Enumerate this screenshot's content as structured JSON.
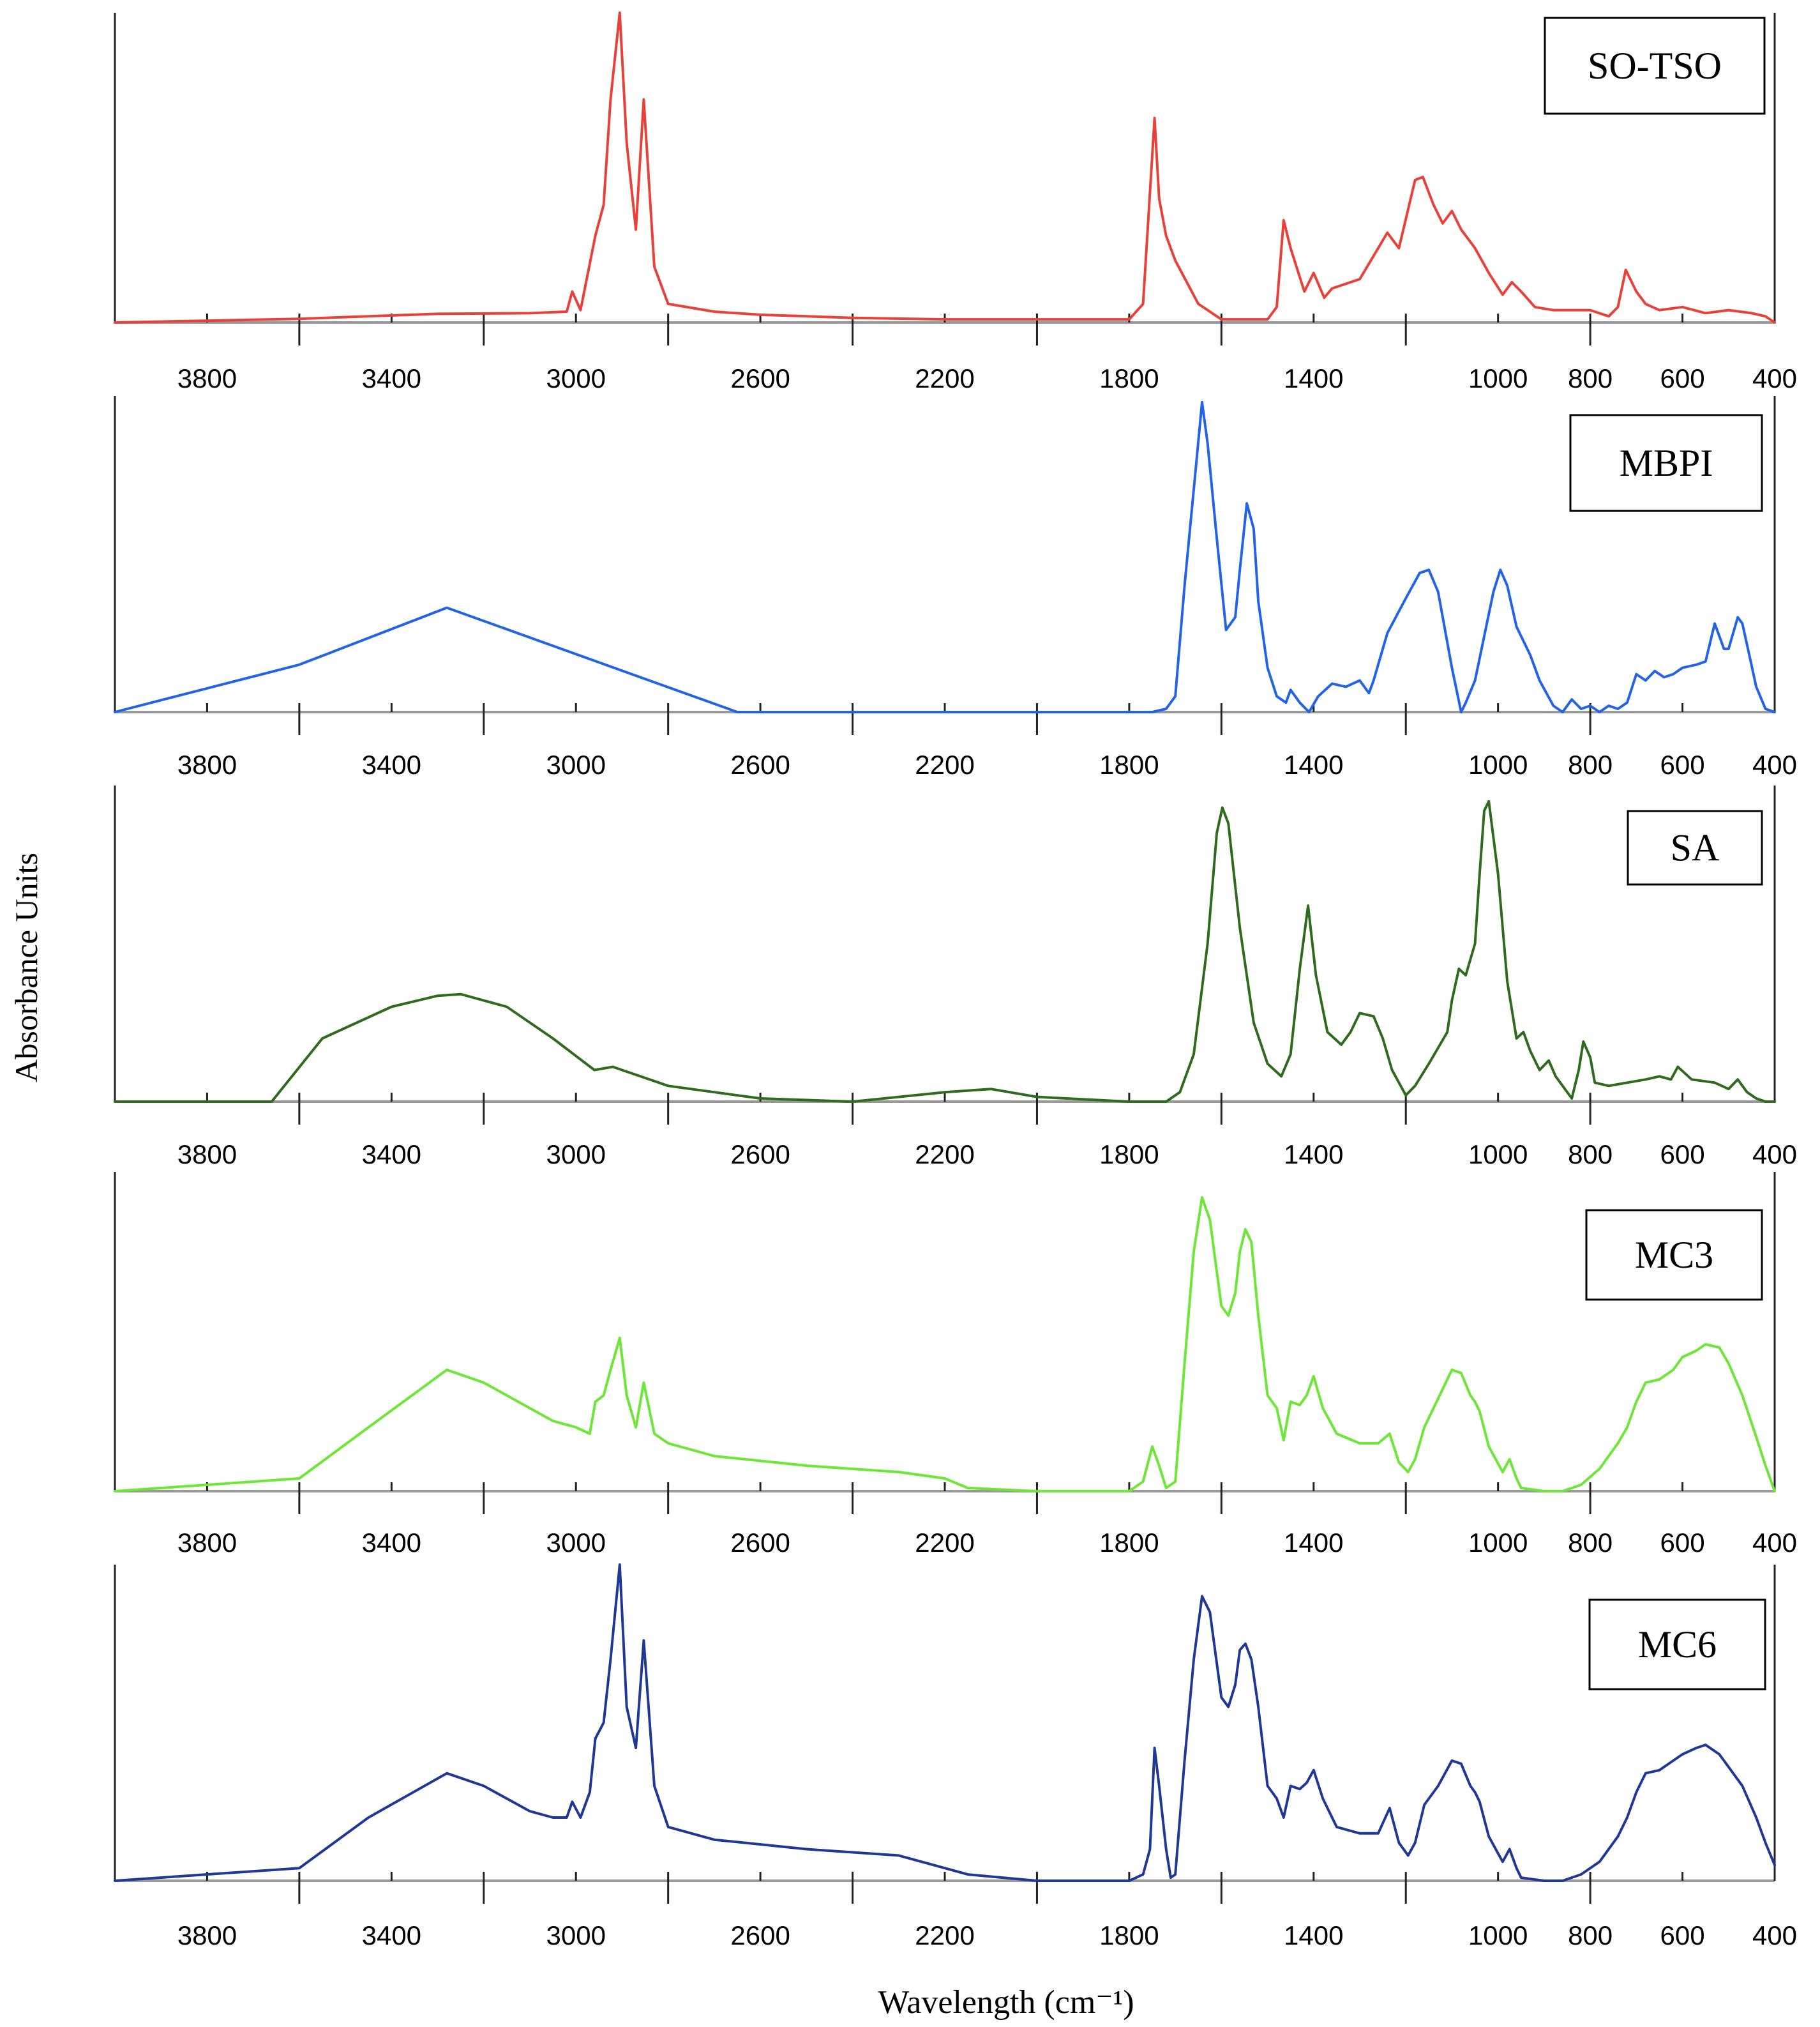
{
  "y_axis_label": "Absorbance Units",
  "x_axis_label": "Wavelength (cm⁻¹)",
  "colors": {
    "SO-TSO": "#e8413a",
    "MBPI": "#2462e8",
    "SA": "#2e6b1e",
    "MC3": "#6ee638",
    "MC6": "#1f3896",
    "axis": "#222222",
    "baseline": "#999999"
  },
  "chart_data": [
    {
      "type": "line",
      "name": "SO-TSO",
      "legend": "SO-TSO",
      "color": "#e8413a",
      "xlim": [
        4000,
        400
      ],
      "ylim": [
        0,
        1
      ],
      "tick_labels": [
        "3800",
        "3400",
        "3000",
        "2600",
        "2200",
        "1800",
        "1400",
        "1000",
        "800",
        "600",
        "400"
      ],
      "x": [
        4000,
        3600,
        3300,
        3100,
        3020,
        3008,
        2990,
        2958,
        2940,
        2925,
        2905,
        2890,
        2870,
        2853,
        2830,
        2800,
        2700,
        2600,
        2400,
        2200,
        1800,
        1770,
        1755,
        1745,
        1735,
        1720,
        1700,
        1650,
        1600,
        1500,
        1480,
        1465,
        1450,
        1420,
        1400,
        1377,
        1360,
        1300,
        1240,
        1215,
        1180,
        1163,
        1140,
        1120,
        1100,
        1080,
        1050,
        1020,
        990,
        970,
        950,
        920,
        880,
        800,
        760,
        740,
        723,
        700,
        680,
        650,
        600,
        550,
        500,
        450,
        420,
        400
      ],
      "values": [
        0.0,
        0.012,
        0.028,
        0.03,
        0.035,
        0.1,
        0.04,
        0.28,
        0.38,
        0.72,
        1.0,
        0.58,
        0.3,
        0.72,
        0.18,
        0.06,
        0.035,
        0.025,
        0.015,
        0.01,
        0.01,
        0.06,
        0.42,
        0.66,
        0.4,
        0.28,
        0.2,
        0.06,
        0.01,
        0.01,
        0.05,
        0.33,
        0.24,
        0.1,
        0.16,
        0.08,
        0.11,
        0.14,
        0.29,
        0.24,
        0.46,
        0.47,
        0.38,
        0.32,
        0.36,
        0.3,
        0.24,
        0.16,
        0.09,
        0.13,
        0.1,
        0.05,
        0.04,
        0.04,
        0.02,
        0.05,
        0.17,
        0.1,
        0.06,
        0.04,
        0.05,
        0.03,
        0.04,
        0.03,
        0.02,
        0.0
      ]
    },
    {
      "type": "line",
      "name": "MBPI",
      "legend": "MBPI",
      "color": "#2462e8",
      "xlim": [
        4000,
        400
      ],
      "ylim": [
        0,
        1
      ],
      "tick_labels": [
        "3800",
        "3400",
        "3000",
        "2600",
        "2200",
        "1800",
        "1400",
        "1000",
        "800",
        "600",
        "400"
      ],
      "x": [
        4000,
        3600,
        3280,
        2650,
        2000,
        1750,
        1720,
        1700,
        1680,
        1655,
        1642,
        1630,
        1610,
        1590,
        1570,
        1560,
        1545,
        1530,
        1520,
        1500,
        1480,
        1460,
        1450,
        1430,
        1410,
        1390,
        1360,
        1330,
        1300,
        1280,
        1270,
        1240,
        1200,
        1170,
        1150,
        1130,
        1100,
        1080,
        1070,
        1050,
        1030,
        1010,
        995,
        980,
        960,
        930,
        910,
        880,
        860,
        840,
        820,
        800,
        780,
        760,
        740,
        720,
        700,
        680,
        660,
        640,
        620,
        600,
        570,
        550,
        530,
        510,
        500,
        480,
        470,
        455,
        440,
        420,
        400
      ],
      "values": [
        0.0,
        0.15,
        0.33,
        0.0,
        0.0,
        0.0,
        0.01,
        0.05,
        0.4,
        0.78,
        0.98,
        0.85,
        0.55,
        0.26,
        0.3,
        0.45,
        0.66,
        0.58,
        0.35,
        0.14,
        0.05,
        0.03,
        0.07,
        0.03,
        0.0,
        0.05,
        0.09,
        0.08,
        0.1,
        0.06,
        0.1,
        0.25,
        0.36,
        0.44,
        0.45,
        0.38,
        0.14,
        0.0,
        0.03,
        0.1,
        0.24,
        0.38,
        0.45,
        0.4,
        0.27,
        0.18,
        0.1,
        0.02,
        0.0,
        0.04,
        0.01,
        0.02,
        0.0,
        0.02,
        0.01,
        0.03,
        0.12,
        0.1,
        0.13,
        0.11,
        0.12,
        0.14,
        0.15,
        0.16,
        0.28,
        0.2,
        0.2,
        0.3,
        0.28,
        0.18,
        0.08,
        0.01,
        0.0
      ]
    },
    {
      "type": "line",
      "name": "SA",
      "legend": "SA",
      "color": "#2e6b1e",
      "xlim": [
        4000,
        400
      ],
      "ylim": [
        0,
        1
      ],
      "tick_labels": [
        "3800",
        "3400",
        "3000",
        "2600",
        "2200",
        "1800",
        "1400",
        "1000",
        "800",
        "600",
        "400"
      ],
      "x": [
        4000,
        3660,
        3550,
        3400,
        3300,
        3250,
        3150,
        3050,
        2960,
        2920,
        2900,
        2860,
        2800,
        2700,
        2600,
        2400,
        2200,
        2100,
        2000,
        1800,
        1720,
        1690,
        1660,
        1630,
        1610,
        1598,
        1585,
        1560,
        1530,
        1500,
        1470,
        1450,
        1430,
        1412,
        1395,
        1370,
        1340,
        1320,
        1300,
        1270,
        1250,
        1230,
        1200,
        1180,
        1150,
        1130,
        1110,
        1100,
        1085,
        1070,
        1050,
        1040,
        1030,
        1020,
        1000,
        980,
        960,
        945,
        930,
        910,
        890,
        875,
        860,
        840,
        825,
        815,
        800,
        790,
        760,
        720,
        680,
        650,
        625,
        610,
        580,
        530,
        500,
        480,
        460,
        440,
        420,
        400
      ],
      "values": [
        0.0,
        0.0,
        0.2,
        0.3,
        0.335,
        0.34,
        0.3,
        0.2,
        0.1,
        0.11,
        0.1,
        0.08,
        0.05,
        0.03,
        0.01,
        0.0,
        0.03,
        0.04,
        0.015,
        0.0,
        0.0,
        0.03,
        0.15,
        0.5,
        0.85,
        0.93,
        0.88,
        0.55,
        0.25,
        0.12,
        0.08,
        0.15,
        0.42,
        0.62,
        0.4,
        0.22,
        0.18,
        0.22,
        0.28,
        0.27,
        0.2,
        0.1,
        0.02,
        0.05,
        0.12,
        0.17,
        0.22,
        0.32,
        0.42,
        0.4,
        0.5,
        0.72,
        0.92,
        0.95,
        0.72,
        0.38,
        0.2,
        0.22,
        0.16,
        0.1,
        0.13,
        0.08,
        0.05,
        0.01,
        0.1,
        0.19,
        0.14,
        0.06,
        0.05,
        0.06,
        0.07,
        0.08,
        0.07,
        0.11,
        0.07,
        0.06,
        0.04,
        0.07,
        0.03,
        0.01,
        0.0,
        0.0
      ]
    },
    {
      "type": "line",
      "name": "MC3",
      "legend": "MC3",
      "color": "#6ee638",
      "xlim": [
        4000,
        400
      ],
      "ylim": [
        0,
        1
      ],
      "tick_labels": [
        "3800",
        "3400",
        "3000",
        "2600",
        "2200",
        "1800",
        "1400",
        "1000",
        "800",
        "600",
        "400"
      ],
      "x": [
        4000,
        3600,
        3450,
        3280,
        3200,
        3100,
        3050,
        3000,
        2970,
        2958,
        2940,
        2925,
        2905,
        2890,
        2870,
        2853,
        2830,
        2800,
        2700,
        2500,
        2300,
        2200,
        2150,
        2000,
        1900,
        1800,
        1770,
        1750,
        1735,
        1720,
        1700,
        1680,
        1660,
        1642,
        1625,
        1600,
        1585,
        1570,
        1560,
        1548,
        1535,
        1520,
        1500,
        1480,
        1465,
        1450,
        1430,
        1415,
        1400,
        1380,
        1350,
        1300,
        1260,
        1235,
        1215,
        1195,
        1180,
        1160,
        1130,
        1100,
        1080,
        1060,
        1050,
        1040,
        1020,
        990,
        975,
        960,
        950,
        900,
        880,
        860,
        820,
        780,
        740,
        720,
        700,
        680,
        650,
        620,
        600,
        570,
        550,
        520,
        500,
        470,
        440,
        420,
        400
      ],
      "values": [
        0.0,
        0.04,
        0.2,
        0.38,
        0.34,
        0.26,
        0.22,
        0.2,
        0.18,
        0.28,
        0.3,
        0.38,
        0.48,
        0.3,
        0.2,
        0.34,
        0.18,
        0.15,
        0.11,
        0.08,
        0.06,
        0.04,
        0.01,
        0.0,
        0.0,
        0.0,
        0.03,
        0.14,
        0.08,
        0.01,
        0.03,
        0.4,
        0.75,
        0.92,
        0.85,
        0.58,
        0.55,
        0.62,
        0.75,
        0.82,
        0.78,
        0.55,
        0.3,
        0.26,
        0.16,
        0.28,
        0.27,
        0.3,
        0.36,
        0.26,
        0.18,
        0.15,
        0.15,
        0.18,
        0.09,
        0.06,
        0.1,
        0.2,
        0.29,
        0.38,
        0.37,
        0.3,
        0.28,
        0.25,
        0.14,
        0.06,
        0.1,
        0.04,
        0.01,
        0.0,
        0.0,
        0.0,
        0.02,
        0.07,
        0.15,
        0.2,
        0.28,
        0.34,
        0.35,
        0.38,
        0.42,
        0.44,
        0.46,
        0.45,
        0.4,
        0.3,
        0.17,
        0.08,
        0.0
      ]
    },
    {
      "type": "line",
      "name": "MC6",
      "legend": "MC6",
      "color": "#1f3896",
      "xlim": [
        4000,
        400
      ],
      "ylim": [
        0,
        1
      ],
      "tick_labels": [
        "3800",
        "3400",
        "3000",
        "2600",
        "2200",
        "1800",
        "1400",
        "1000",
        "800",
        "600",
        "400"
      ],
      "x": [
        4000,
        3600,
        3450,
        3280,
        3200,
        3100,
        3050,
        3020,
        3008,
        2990,
        2970,
        2958,
        2940,
        2925,
        2905,
        2890,
        2870,
        2853,
        2830,
        2800,
        2700,
        2500,
        2300,
        2200,
        2150,
        2000,
        1900,
        1800,
        1770,
        1755,
        1745,
        1735,
        1720,
        1710,
        1700,
        1680,
        1660,
        1642,
        1625,
        1600,
        1585,
        1570,
        1560,
        1548,
        1535,
        1520,
        1500,
        1480,
        1465,
        1450,
        1430,
        1415,
        1400,
        1380,
        1350,
        1300,
        1260,
        1235,
        1215,
        1195,
        1180,
        1160,
        1130,
        1100,
        1080,
        1060,
        1050,
        1040,
        1020,
        990,
        975,
        960,
        950,
        900,
        880,
        860,
        820,
        780,
        740,
        720,
        700,
        680,
        650,
        620,
        600,
        570,
        550,
        520,
        500,
        470,
        440,
        420,
        400
      ],
      "values": [
        0.0,
        0.04,
        0.2,
        0.34,
        0.3,
        0.22,
        0.2,
        0.2,
        0.25,
        0.2,
        0.28,
        0.45,
        0.5,
        0.7,
        1.0,
        0.55,
        0.42,
        0.76,
        0.3,
        0.17,
        0.13,
        0.1,
        0.08,
        0.04,
        0.02,
        0.0,
        0.0,
        0.0,
        0.02,
        0.1,
        0.42,
        0.3,
        0.1,
        0.01,
        0.02,
        0.38,
        0.7,
        0.9,
        0.85,
        0.58,
        0.55,
        0.62,
        0.73,
        0.75,
        0.7,
        0.55,
        0.3,
        0.26,
        0.2,
        0.3,
        0.29,
        0.31,
        0.35,
        0.26,
        0.17,
        0.15,
        0.15,
        0.23,
        0.12,
        0.08,
        0.12,
        0.24,
        0.3,
        0.38,
        0.37,
        0.3,
        0.28,
        0.25,
        0.14,
        0.06,
        0.1,
        0.04,
        0.01,
        0.0,
        0.0,
        0.0,
        0.02,
        0.06,
        0.14,
        0.2,
        0.28,
        0.34,
        0.35,
        0.38,
        0.4,
        0.42,
        0.43,
        0.4,
        0.36,
        0.3,
        0.2,
        0.12,
        0.05
      ]
    }
  ]
}
